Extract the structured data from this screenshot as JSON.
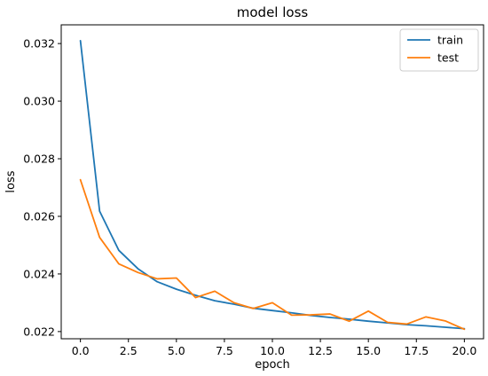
{
  "chart_data": {
    "type": "line",
    "title": "model loss",
    "xlabel": "epoch",
    "ylabel": "loss",
    "xlim": [
      -1.0,
      21.0
    ],
    "ylim": [
      0.02175,
      0.03265
    ],
    "xticks": [
      0.0,
      2.5,
      5.0,
      7.5,
      10.0,
      12.5,
      15.0,
      17.5,
      20.0
    ],
    "xtick_labels": [
      "0.0",
      "2.5",
      "5.0",
      "7.5",
      "10.0",
      "12.5",
      "15.0",
      "17.5",
      "20.0"
    ],
    "yticks": [
      0.022,
      0.024,
      0.026,
      0.028,
      0.03,
      0.032
    ],
    "ytick_labels": [
      "0.022",
      "0.024",
      "0.026",
      "0.028",
      "0.030",
      "0.032"
    ],
    "grid": false,
    "legend_position": "top-right",
    "x": [
      0,
      1,
      2,
      3,
      4,
      5,
      6,
      7,
      8,
      9,
      10,
      11,
      12,
      13,
      14,
      15,
      16,
      17,
      18,
      19,
      20
    ],
    "series": [
      {
        "name": "train",
        "color": "#1f77b4",
        "values": [
          0.0321,
          0.02618,
          0.02482,
          0.02418,
          0.02373,
          0.02347,
          0.02326,
          0.02307,
          0.02295,
          0.02281,
          0.02273,
          0.02265,
          0.02256,
          0.02249,
          0.02243,
          0.02236,
          0.0223,
          0.02224,
          0.0222,
          0.02215,
          0.0221
        ]
      },
      {
        "name": "test",
        "color": "#ff7f0e",
        "values": [
          0.02727,
          0.02527,
          0.02435,
          0.02405,
          0.02383,
          0.02386,
          0.02318,
          0.0234,
          0.023,
          0.0228,
          0.023,
          0.02257,
          0.02258,
          0.02261,
          0.02236,
          0.02271,
          0.02232,
          0.02226,
          0.02251,
          0.02237,
          0.02208
        ]
      }
    ]
  }
}
